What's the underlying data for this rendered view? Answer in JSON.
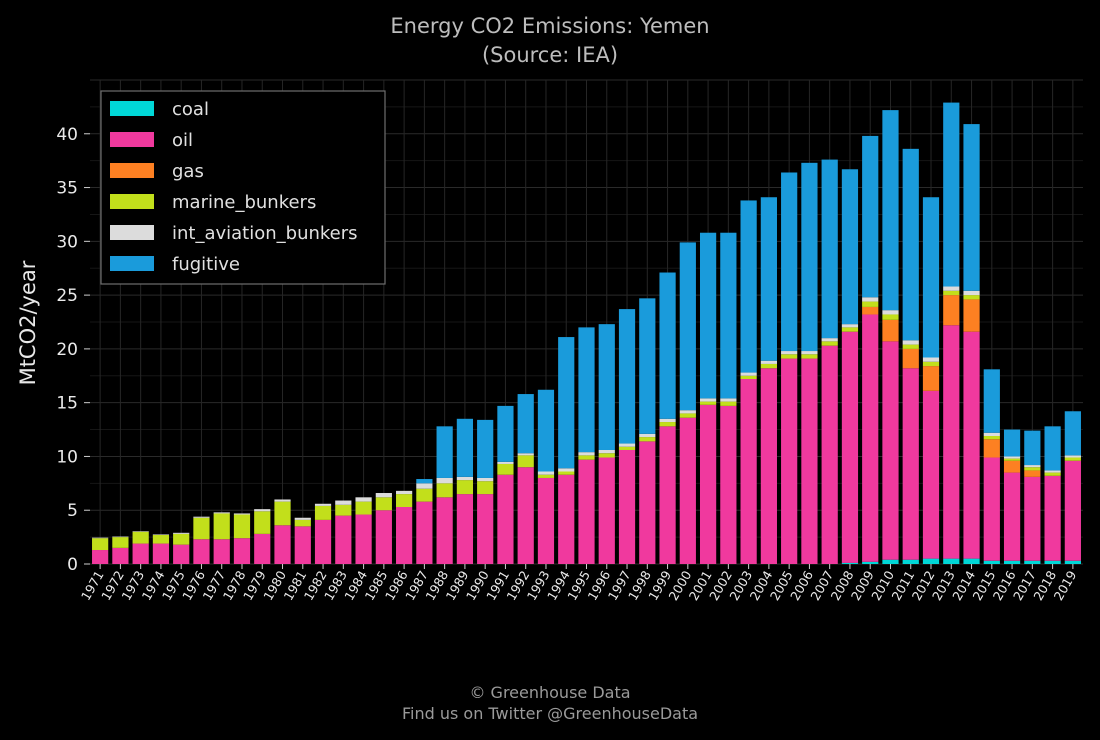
{
  "chart_data": {
    "type": "bar",
    "stacked": true,
    "title": "Energy CO2 Emissions: Yemen",
    "subtitle": "(Source: IEA)",
    "xlabel": "",
    "ylabel": "MtCO2/year",
    "ylim": [
      0,
      45
    ],
    "yticks": [
      0,
      5,
      10,
      15,
      20,
      25,
      30,
      35,
      40
    ],
    "grid": true,
    "legend_position": "top-left",
    "categories": [
      "1971",
      "1972",
      "1973",
      "1974",
      "1975",
      "1976",
      "1977",
      "1978",
      "1979",
      "1980",
      "1981",
      "1982",
      "1983",
      "1984",
      "1985",
      "1986",
      "1987",
      "1988",
      "1989",
      "1990",
      "1991",
      "1992",
      "1993",
      "1994",
      "1995",
      "1996",
      "1997",
      "1998",
      "1999",
      "2000",
      "2001",
      "2002",
      "2003",
      "2004",
      "2005",
      "2006",
      "2007",
      "2008",
      "2009",
      "2010",
      "2011",
      "2012",
      "2013",
      "2014",
      "2015",
      "2016",
      "2017",
      "2018",
      "2019"
    ],
    "series": [
      {
        "name": "coal",
        "color": "#00d7d7",
        "values": [
          0,
          0,
          0,
          0,
          0,
          0,
          0,
          0,
          0,
          0,
          0,
          0,
          0,
          0,
          0,
          0,
          0,
          0,
          0,
          0,
          0,
          0,
          0,
          0,
          0,
          0,
          0,
          0,
          0,
          0,
          0,
          0,
          0,
          0,
          0,
          0,
          0,
          0.1,
          0.2,
          0.4,
          0.4,
          0.5,
          0.5,
          0.5,
          0.3,
          0.3,
          0.3,
          0.3,
          0.3
        ]
      },
      {
        "name": "oil",
        "color": "#f0399e",
        "values": [
          1.3,
          1.5,
          1.9,
          1.9,
          1.8,
          2.3,
          2.3,
          2.4,
          2.8,
          3.6,
          3.5,
          4.1,
          4.5,
          4.6,
          5.0,
          5.3,
          5.8,
          6.2,
          6.5,
          6.5,
          8.3,
          9.0,
          8.0,
          8.3,
          9.7,
          9.9,
          10.6,
          11.4,
          12.8,
          13.6,
          14.8,
          14.7,
          17.2,
          18.2,
          19.1,
          19.1,
          20.3,
          21.5,
          23.0,
          20.3,
          17.8,
          15.6,
          21.7,
          21.1,
          9.6,
          8.2,
          7.8,
          7.9,
          9.3
        ]
      },
      {
        "name": "gas",
        "color": "#fd8022",
        "values": [
          0,
          0,
          0,
          0,
          0,
          0,
          0,
          0,
          0,
          0,
          0,
          0,
          0,
          0,
          0,
          0,
          0,
          0,
          0,
          0,
          0,
          0,
          0,
          0,
          0,
          0,
          0,
          0,
          0,
          0,
          0,
          0,
          0,
          0,
          0,
          0,
          0,
          0,
          0.7,
          2.0,
          1.8,
          2.3,
          2.8,
          3.0,
          1.7,
          1.1,
          0.6,
          0,
          0
        ]
      },
      {
        "name": "marine_bunkers",
        "color": "#c2df1b",
        "values": [
          1.1,
          1.0,
          1.1,
          0.8,
          1.0,
          2.0,
          2.4,
          2.2,
          2.1,
          2.2,
          0.6,
          1.3,
          1.0,
          1.2,
          1.2,
          1.2,
          1.2,
          1.3,
          1.3,
          1.2,
          1.0,
          1.1,
          0.3,
          0.3,
          0.4,
          0.4,
          0.3,
          0.4,
          0.4,
          0.4,
          0.3,
          0.4,
          0.3,
          0.4,
          0.4,
          0.4,
          0.4,
          0.4,
          0.5,
          0.5,
          0.4,
          0.4,
          0.4,
          0.4,
          0.3,
          0.2,
          0.3,
          0.3,
          0.3
        ]
      },
      {
        "name": "int_aviation_bunkers",
        "color": "#dcdcdc",
        "values": [
          0.05,
          0.05,
          0.05,
          0.05,
          0.1,
          0.1,
          0.1,
          0.1,
          0.2,
          0.2,
          0.2,
          0.2,
          0.4,
          0.4,
          0.4,
          0.3,
          0.5,
          0.5,
          0.3,
          0.3,
          0.2,
          0.2,
          0.3,
          0.3,
          0.3,
          0.3,
          0.3,
          0.3,
          0.3,
          0.3,
          0.3,
          0.3,
          0.3,
          0.3,
          0.3,
          0.3,
          0.3,
          0.3,
          0.4,
          0.4,
          0.4,
          0.4,
          0.4,
          0.4,
          0.3,
          0.2,
          0.2,
          0.2,
          0.2
        ]
      },
      {
        "name": "fugitive",
        "color": "#1a9bdb",
        "values": [
          0,
          0,
          0,
          0,
          0,
          0,
          0,
          0,
          0,
          0,
          0,
          0,
          0,
          0,
          0,
          0,
          0.4,
          4.8,
          5.4,
          5.4,
          5.2,
          5.5,
          7.6,
          12.2,
          11.6,
          11.7,
          12.5,
          12.6,
          13.6,
          15.6,
          15.4,
          15.4,
          16.0,
          15.2,
          16.6,
          17.5,
          16.6,
          14.4,
          15.0,
          18.6,
          17.8,
          14.9,
          17.1,
          15.5,
          5.9,
          2.5,
          3.2,
          4.1,
          4.1
        ]
      }
    ]
  },
  "footer": {
    "copyright": "© Greenhouse Data",
    "twitter": "Find us on Twitter @GreenhouseData"
  }
}
